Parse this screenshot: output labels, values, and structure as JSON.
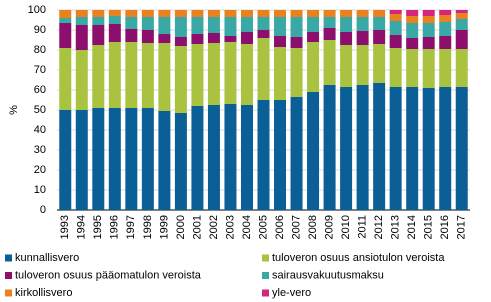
{
  "chart_data": {
    "type": "stacked_bar",
    "y_label": "%",
    "categories": [
      "1993",
      "1994",
      "1995",
      "1996",
      "1997",
      "1998",
      "1999",
      "2000",
      "2001",
      "2002",
      "2003",
      "2004",
      "2005",
      "2006",
      "2007",
      "2008",
      "2009",
      "2010",
      "2011",
      "2012",
      "2013",
      "2014",
      "2015",
      "2016",
      "2017"
    ],
    "series": [
      {
        "name": "kunnallisvero",
        "color": "#0a5f96",
        "values": [
          50,
          50,
          51,
          51,
          51,
          51,
          49.5,
          48.5,
          52,
          52.5,
          53,
          52.5,
          55,
          55,
          56.5,
          59,
          62.5,
          61.5,
          62.5,
          63.5,
          61.5,
          61.5,
          61,
          61.5,
          61.5
        ]
      },
      {
        "name": "tuloveron osuus ansiotulon veroista",
        "color": "#a9c23f",
        "values": [
          31,
          30,
          31.5,
          33,
          33,
          32.5,
          34,
          33.5,
          31,
          31,
          31,
          30.5,
          31,
          26.5,
          24.5,
          25,
          22.5,
          21,
          20,
          19.5,
          19.5,
          19,
          19.5,
          19,
          19
        ]
      },
      {
        "name": "tuloveron osuus pääomatulon veroista",
        "color": "#8c0f6e",
        "values": [
          12.5,
          12.5,
          10,
          9,
          6.5,
          6.5,
          4.5,
          4.5,
          5,
          5,
          3,
          6,
          4,
          5.5,
          5.5,
          5,
          6,
          6.5,
          7,
          7,
          6.5,
          5.5,
          6,
          6.5,
          9.5
        ]
      },
      {
        "name": "sairausvakuutusmaksu",
        "color": "#3aa9a6",
        "values": [
          2.5,
          4,
          4,
          4,
          6,
          6.5,
          8.5,
          10,
          8.5,
          8,
          9.5,
          7.5,
          6.5,
          9.5,
          10,
          7.5,
          5.5,
          7.5,
          7,
          6.5,
          7,
          7.5,
          7,
          7,
          5.5
        ]
      },
      {
        "name": "kirkollisvero",
        "color": "#e8821e",
        "values": [
          4,
          3.5,
          3.5,
          3,
          3.5,
          3.5,
          3.5,
          3.5,
          3.5,
          3.5,
          3.5,
          3.5,
          3.5,
          3.5,
          3.5,
          3.5,
          3.5,
          3.5,
          3.5,
          3.5,
          3.5,
          3.5,
          3.5,
          3.5,
          3
        ]
      },
      {
        "name": "yle-vero",
        "color": "#d4247e",
        "values": [
          null,
          null,
          null,
          null,
          null,
          null,
          null,
          null,
          null,
          null,
          null,
          null,
          null,
          null,
          null,
          null,
          null,
          null,
          null,
          null,
          2,
          3,
          3,
          2.5,
          1.5
        ]
      }
    ],
    "ylim": [
      0,
      100
    ],
    "yticks": [
      0,
      10,
      20,
      30,
      40,
      50,
      60,
      70,
      80,
      90,
      100
    ],
    "grid": true
  }
}
